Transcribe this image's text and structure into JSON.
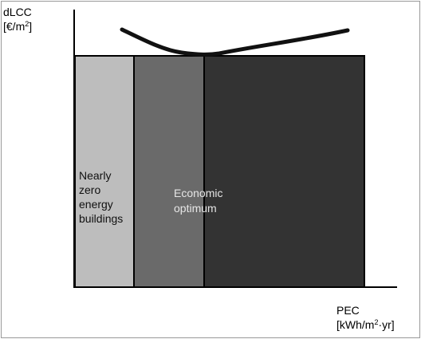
{
  "diagram": {
    "y_axis_label_line1": "dLCC",
    "y_axis_label_line2_prefix": "[€/m",
    "y_axis_label_line2_sup": "2",
    "y_axis_label_line2_suffix": "]",
    "x_axis_label_line1": "PEC",
    "x_axis_label_line2_prefix": "[kWh/m",
    "x_axis_label_line2_sup": "2",
    "x_axis_label_line2_suffix": "·yr]",
    "region_nzeb": {
      "lines": [
        "Nearly",
        "zero",
        "energy",
        "buildings"
      ]
    },
    "region_optimum": {
      "lines": [
        "Economic",
        "optimum"
      ]
    },
    "colors": {
      "nzeb_fill": "#bdbdbd",
      "mid_fill": "#6a6a6a",
      "right_fill": "#333333",
      "optimum_text": "#e6e6e6",
      "nzeb_text": "#111111",
      "curve": "#111111"
    }
  }
}
